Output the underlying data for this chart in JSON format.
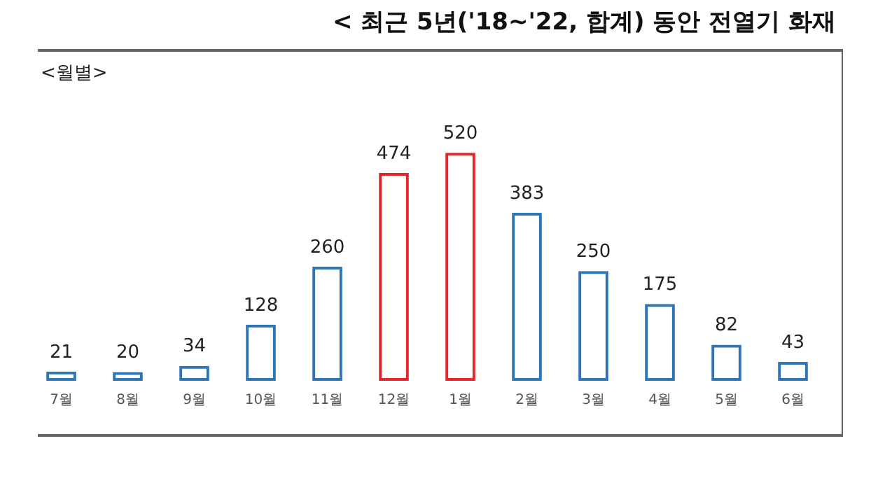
{
  "chart_data": {
    "type": "bar",
    "title": "< 최근 5년('18~'22, 합계) 동안 전열기 화재",
    "subtitle": "<월별>",
    "categories": [
      "7월",
      "8월",
      "9월",
      "10월",
      "11월",
      "12월",
      "1월",
      "2월",
      "3월",
      "4월",
      "5월",
      "6월"
    ],
    "values": [
      21,
      20,
      34,
      128,
      260,
      474,
      520,
      383,
      250,
      175,
      82,
      43
    ],
    "colors": [
      "#2e75b6",
      "#2e75b6",
      "#2e75b6",
      "#2e75b6",
      "#2e75b6",
      "#e8232a",
      "#e8232a",
      "#2e75b6",
      "#2e75b6",
      "#2e75b6",
      "#2e75b6",
      "#2e75b6"
    ],
    "data_labels": true,
    "grid": false,
    "legend": false
  }
}
